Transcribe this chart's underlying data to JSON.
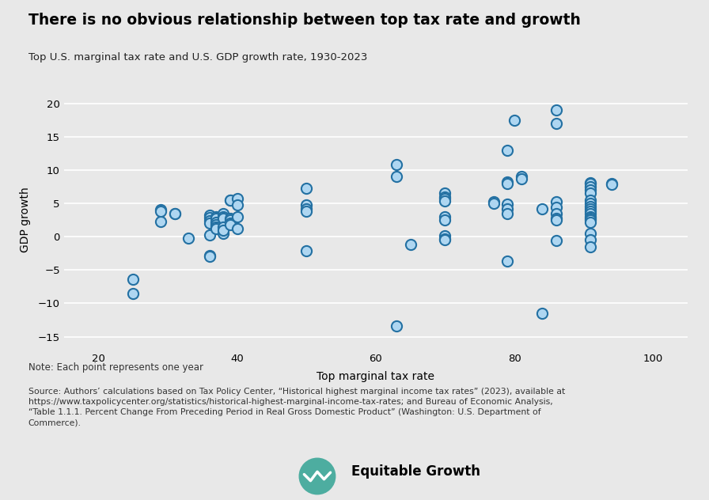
{
  "title": "There is no obvious relationship between top tax rate and growth",
  "subtitle": "Top U.S. marginal tax rate and U.S. GDP growth rate, 1930-2023",
  "xlabel": "Top marginal tax rate",
  "ylabel": "GDP growth",
  "note": "Note: Each point represents one year",
  "source_line1": "Source: Authors’ calculations based on Tax Policy Center, “Historical highest marginal income tax rates” (2023), available at",
  "source_line2": "https://www.taxpolicycenter.org/statistics/historical-highest-marginal-income-tax-rates; and Bureau of Economic Analysis,",
  "source_line3": "“Table 1.1.1. Percent Change From Preceding Period in Real Gross Domestic Product” (Washington: U.S. Department of",
  "source_line4": "Commerce).",
  "xlim": [
    15,
    105
  ],
  "ylim": [
    -17,
    22
  ],
  "xticks": [
    20,
    40,
    60,
    80,
    100
  ],
  "yticks": [
    -15,
    -10,
    -5,
    0,
    5,
    10,
    15,
    20
  ],
  "scatter_edge_color": "#2471A3",
  "marker_facecolor": "#AED6F1",
  "bg_color": "#E8E8E8",
  "scatter_data": [
    [
      25,
      -6.4
    ],
    [
      25,
      -8.5
    ],
    [
      29,
      2.3
    ],
    [
      29,
      4.1
    ],
    [
      29,
      3.8
    ],
    [
      31,
      3.5
    ],
    [
      31,
      3.4
    ],
    [
      33,
      -0.2
    ],
    [
      36,
      3.2
    ],
    [
      36,
      2.9
    ],
    [
      36,
      2.4
    ],
    [
      36,
      2.0
    ],
    [
      36,
      0.3
    ],
    [
      36,
      -2.8
    ],
    [
      36,
      -3.0
    ],
    [
      37,
      3.0
    ],
    [
      37,
      2.7
    ],
    [
      37,
      2.2
    ],
    [
      37,
      1.8
    ],
    [
      37,
      1.5
    ],
    [
      37,
      1.2
    ],
    [
      38,
      3.5
    ],
    [
      38,
      3.0
    ],
    [
      38,
      2.7
    ],
    [
      38,
      1.5
    ],
    [
      38,
      0.5
    ],
    [
      38,
      1.0
    ],
    [
      39,
      5.5
    ],
    [
      39,
      5.5
    ],
    [
      39,
      2.8
    ],
    [
      39,
      2.5
    ],
    [
      39,
      2.0
    ],
    [
      39,
      1.8
    ],
    [
      40,
      5.7
    ],
    [
      40,
      4.8
    ],
    [
      40,
      3.0
    ],
    [
      40,
      1.2
    ],
    [
      50,
      7.2
    ],
    [
      50,
      4.8
    ],
    [
      50,
      4.2
    ],
    [
      50,
      3.8
    ],
    [
      50,
      -2.1
    ],
    [
      63,
      10.8
    ],
    [
      63,
      9.0
    ],
    [
      63,
      -13.4
    ],
    [
      65,
      -1.2
    ],
    [
      70,
      6.5
    ],
    [
      70,
      6.0
    ],
    [
      70,
      5.7
    ],
    [
      70,
      5.3
    ],
    [
      70,
      3.0
    ],
    [
      70,
      2.5
    ],
    [
      70,
      0.1
    ],
    [
      70,
      -0.3
    ],
    [
      70,
      -0.5
    ],
    [
      77,
      5.2
    ],
    [
      77,
      5.0
    ],
    [
      79,
      13.0
    ],
    [
      79,
      8.2
    ],
    [
      79,
      8.0
    ],
    [
      79,
      4.9
    ],
    [
      79,
      4.2
    ],
    [
      79,
      3.5
    ],
    [
      79,
      -3.7
    ],
    [
      80,
      17.5
    ],
    [
      81,
      9.0
    ],
    [
      81,
      8.7
    ],
    [
      84,
      4.2
    ],
    [
      84,
      -11.5
    ],
    [
      86,
      19.0
    ],
    [
      86,
      17.0
    ],
    [
      86,
      5.2
    ],
    [
      86,
      4.4
    ],
    [
      86,
      3.5
    ],
    [
      86,
      2.8
    ],
    [
      86,
      2.5
    ],
    [
      86,
      -0.6
    ],
    [
      91,
      8.1
    ],
    [
      91,
      8.0
    ],
    [
      91,
      7.5
    ],
    [
      91,
      7.0
    ],
    [
      91,
      6.5
    ],
    [
      91,
      5.5
    ],
    [
      91,
      5.0
    ],
    [
      91,
      4.5
    ],
    [
      91,
      4.2
    ],
    [
      91,
      3.8
    ],
    [
      91,
      3.4
    ],
    [
      91,
      3.0
    ],
    [
      91,
      2.7
    ],
    [
      91,
      2.5
    ],
    [
      91,
      2.2
    ],
    [
      91,
      0.5
    ],
    [
      91,
      -0.5
    ],
    [
      91,
      -1.5
    ],
    [
      94,
      8.0
    ],
    [
      94,
      7.8
    ]
  ]
}
